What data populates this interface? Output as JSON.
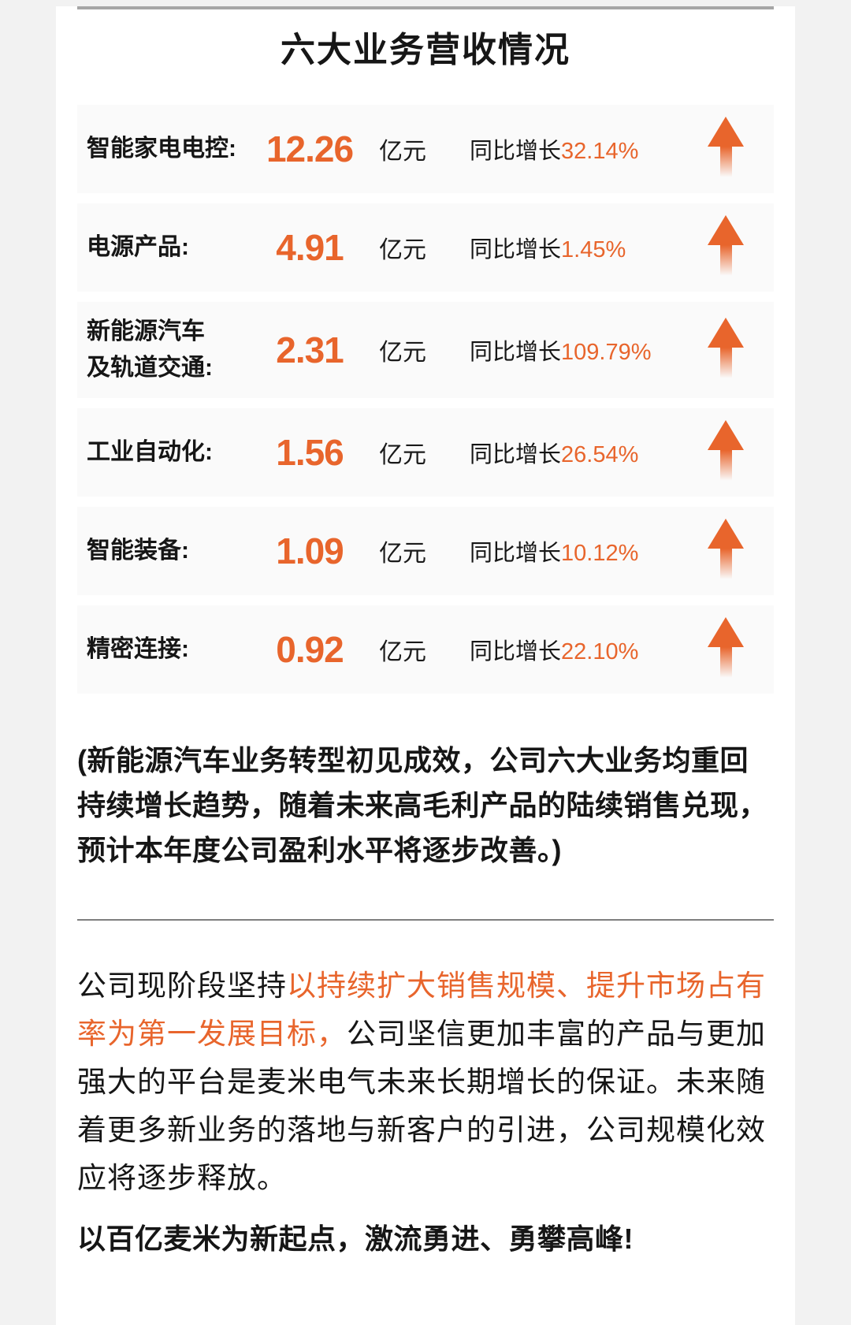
{
  "title": "六大业务营收情况",
  "rows": [
    {
      "label": "智能家电电控:",
      "value": "12.26",
      "unit": "亿元",
      "growth_prefix": "同比增长",
      "growth": "32.14%"
    },
    {
      "label": "电源产品:",
      "value": "4.91",
      "unit": "亿元",
      "growth_prefix": "同比增长",
      "growth": "1.45%"
    },
    {
      "label": "新能源汽车\n及轨道交通:",
      "value": "2.31",
      "unit": "亿元",
      "growth_prefix": "同比增长",
      "growth": "109.79%"
    },
    {
      "label": "工业自动化:",
      "value": "1.56",
      "unit": "亿元",
      "growth_prefix": "同比增长",
      "growth": "26.54%"
    },
    {
      "label": "智能装备:",
      "value": "1.09",
      "unit": "亿元",
      "growth_prefix": "同比增长",
      "growth": "10.12%"
    },
    {
      "label": "精密连接:",
      "value": "0.92",
      "unit": "亿元",
      "growth_prefix": "同比增长",
      "growth": "22.10%"
    }
  ],
  "arrow_icon": "up-arrow",
  "note": "(新能源汽车业务转型初见成效，公司六大业务均重回持续增长趋势，随着未来高毛利产品的陆续销售兑现，预计本年度公司盈利水平将逐步改善。)",
  "paragraph": {
    "lead": "公司现阶段坚持",
    "highlight": "以持续扩大销售规模、提升市场占有率为第一发展目标，",
    "rest": "公司坚信更加丰富的产品与更加强大的平台是麦米电气未来长期增长的保证。未来随着更多新业务的落地与新客户的引进，公司规模化效应将逐步释放。"
  },
  "closing": "以百亿麦米为新起点，激流勇进、勇攀高峰!",
  "colors": {
    "accent": "#E8652C",
    "row_bg": "#FAFAFA",
    "page_bg": "#F2F2F2",
    "divider_top": "#A6A6A6",
    "divider_mid": "#7E7E7E",
    "text": "#161616"
  }
}
